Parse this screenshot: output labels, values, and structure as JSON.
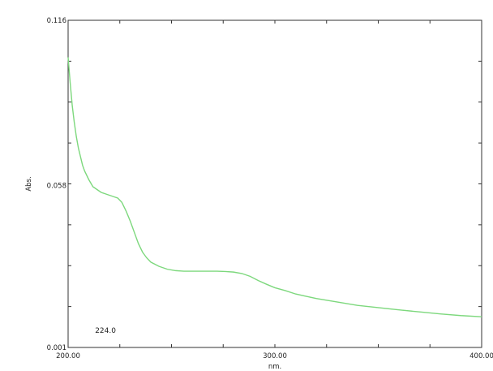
{
  "chart_data": {
    "type": "line",
    "title": "",
    "xlabel": "nm.",
    "ylabel": "Abs.",
    "xlim": [
      200.0,
      400.0
    ],
    "ylim": [
      0.001,
      0.116
    ],
    "x_ticks": [
      200.0,
      300.0,
      400.0
    ],
    "x_tick_labels": [
      "200.00",
      "300.00",
      "400.00"
    ],
    "y_ticks": [
      0.001,
      0.058,
      0.116
    ],
    "y_tick_labels": [
      "0.001",
      "0.058",
      "0.116"
    ],
    "grid": false,
    "legend": "none",
    "line_color": "#7dd87d",
    "series": [
      {
        "x": [
          200,
          201,
          202,
          203,
          204,
          205,
          206,
          207,
          208,
          210,
          212,
          214,
          216,
          218,
          220,
          222,
          224,
          226,
          228,
          230,
          232,
          234,
          236,
          238,
          240,
          244,
          248,
          252,
          256,
          260,
          264,
          268,
          272,
          276,
          280,
          284,
          288,
          292,
          296,
          300,
          305,
          310,
          315,
          320,
          330,
          340,
          350,
          360,
          370,
          380,
          390,
          400
        ],
        "y": [
          0.103,
          0.094,
          0.086,
          0.08,
          0.075,
          0.071,
          0.068,
          0.065,
          0.063,
          0.06,
          0.0575,
          0.0565,
          0.0555,
          0.055,
          0.0545,
          0.054,
          0.0535,
          0.052,
          0.049,
          0.0455,
          0.0415,
          0.0375,
          0.0345,
          0.0325,
          0.031,
          0.0295,
          0.0285,
          0.028,
          0.0278,
          0.0278,
          0.0278,
          0.0278,
          0.0278,
          0.0277,
          0.0275,
          0.027,
          0.026,
          0.0245,
          0.0232,
          0.022,
          0.021,
          0.0198,
          0.019,
          0.0182,
          0.017,
          0.0158,
          0.015,
          0.0142,
          0.0135,
          0.0128,
          0.0122,
          0.0118
        ]
      }
    ],
    "annotations": [
      {
        "text": "224.0"
      }
    ]
  }
}
